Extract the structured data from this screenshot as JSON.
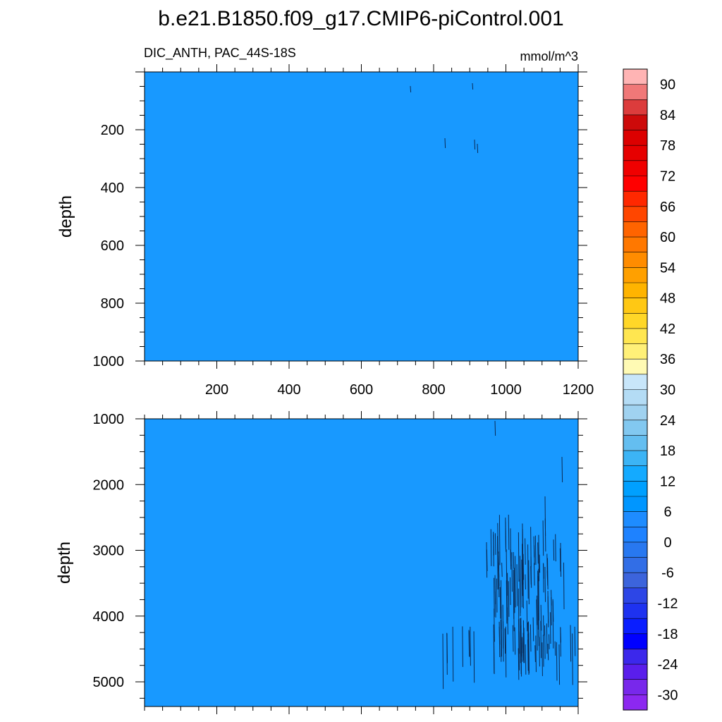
{
  "title": "b.e21.B1850.f09_g17.CMIP6-piControl.001",
  "subtitle_left": "DIC_ANTH, PAC_44S-18S",
  "subtitle_right": "mmol/m^3",
  "colors": {
    "field": "#1899ff",
    "contour": "#0a2a55"
  },
  "chart_data": [
    {
      "type": "heatmap",
      "panel": "upper",
      "ylabel": "depth",
      "xlim": [
        0,
        1200
      ],
      "ylim": [
        1000,
        0
      ],
      "x_ticks": [
        200,
        400,
        600,
        800,
        1000,
        1200
      ],
      "y_ticks": [
        200,
        400,
        600,
        800,
        1000
      ],
      "fill_value": 0
    },
    {
      "type": "heatmap",
      "panel": "lower",
      "ylabel": "depth",
      "xlim": [
        0,
        1200
      ],
      "ylim": [
        5375,
        1000
      ],
      "y_ticks": [
        1000,
        2000,
        3000,
        4000,
        5000
      ],
      "fill_value": 0
    }
  ],
  "colorbar": {
    "labels": [
      "90",
      "84",
      "78",
      "72",
      "66",
      "60",
      "54",
      "48",
      "42",
      "36",
      "30",
      "24",
      "18",
      "12",
      "6",
      "0",
      "-6",
      "-12",
      "-18",
      "-24",
      "-30"
    ],
    "colors": [
      "#ffb4b4",
      "#f07878",
      "#dc3c3c",
      "#cd0a0a",
      "#dc0000",
      "#e60000",
      "#f00000",
      "#ff0000",
      "#ff2800",
      "#ff4600",
      "#ff6400",
      "#ff7800",
      "#ff8c00",
      "#ffa000",
      "#ffb400",
      "#ffc814",
      "#ffd728",
      "#ffe650",
      "#fff078",
      "#fffab4",
      "#c8e6fa",
      "#b4dcf5",
      "#a0d2f0",
      "#82c8f0",
      "#64bef0",
      "#3cb4f5",
      "#14aaff",
      "#00a0ff",
      "#0096ff",
      "#1e8cff",
      "#1e82ff",
      "#2878f0",
      "#326ee6",
      "#3c64dc",
      "#2d46e6",
      "#1e32f0",
      "#0a1eff",
      "#0000ff",
      "#3c28eb",
      "#5a1eeb",
      "#7828eb",
      "#8c28f0"
    ]
  }
}
